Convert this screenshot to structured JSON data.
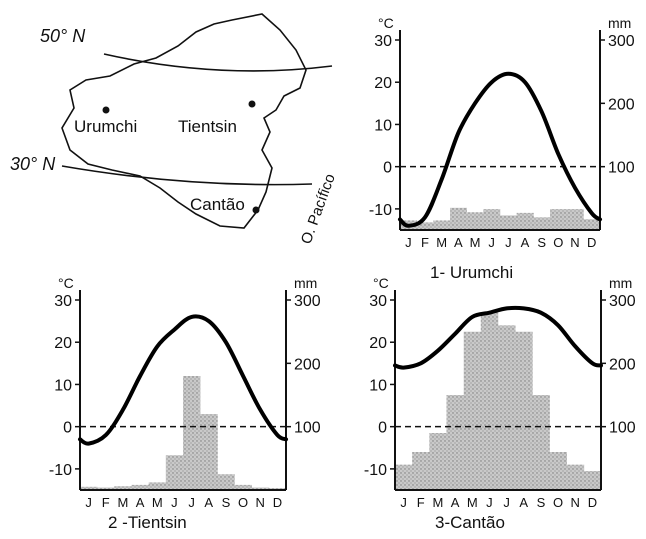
{
  "map": {
    "lat_labels": [
      "50° N",
      "30° N"
    ],
    "cities": [
      {
        "name": "Urumchi"
      },
      {
        "name": "Tientsin"
      },
      {
        "name": "Cantão"
      }
    ],
    "ocean_label": "O. Pacífico"
  },
  "chart_data": [
    {
      "type": "bar",
      "title": "1- Urumchi",
      "categories": [
        "J",
        "F",
        "M",
        "A",
        "M",
        "J",
        "J",
        "A",
        "S",
        "O",
        "N",
        "D"
      ],
      "left_unit": "°C",
      "right_unit": "mm",
      "temp_range": [
        -15,
        30
      ],
      "temp_ticks": [
        30,
        20,
        10,
        0,
        -10
      ],
      "precip_range": [
        0,
        300
      ],
      "precip_ticks": [
        300,
        200,
        100
      ],
      "series": [
        {
          "type": "line",
          "axis": "left",
          "values": [
            -14,
            -12,
            -3,
            8,
            15,
            20,
            22,
            20,
            13,
            3,
            -5,
            -11
          ]
        },
        {
          "type": "bar",
          "axis": "right",
          "values": [
            15,
            12,
            15,
            35,
            28,
            33,
            23,
            27,
            20,
            33,
            33,
            17
          ]
        }
      ]
    },
    {
      "type": "bar",
      "title": "2 -Tientsin",
      "categories": [
        "J",
        "F",
        "M",
        "A",
        "M",
        "J",
        "J",
        "A",
        "S",
        "O",
        "N",
        "D"
      ],
      "left_unit": "°C",
      "right_unit": "mm",
      "temp_range": [
        -15,
        30
      ],
      "temp_ticks": [
        30,
        20,
        10,
        0,
        -10
      ],
      "precip_range": [
        0,
        300
      ],
      "precip_ticks": [
        300,
        200,
        100
      ],
      "series": [
        {
          "type": "line",
          "axis": "left",
          "values": [
            -4,
            -2,
            4,
            12,
            19,
            23,
            26,
            25,
            20,
            12,
            4,
            -2
          ]
        },
        {
          "type": "bar",
          "axis": "right",
          "values": [
            5,
            4,
            6,
            8,
            12,
            55,
            180,
            120,
            25,
            8,
            4,
            3
          ]
        }
      ]
    },
    {
      "type": "bar",
      "title": "3-Cantão",
      "categories": [
        "J",
        "F",
        "M",
        "A",
        "M",
        "J",
        "J",
        "A",
        "S",
        "O",
        "N",
        "D"
      ],
      "left_unit": "°C",
      "right_unit": "mm",
      "temp_range": [
        -15,
        30
      ],
      "temp_ticks": [
        30,
        20,
        10,
        0,
        -10
      ],
      "precip_range": [
        0,
        300
      ],
      "precip_ticks": [
        300,
        200,
        100
      ],
      "series": [
        {
          "type": "line",
          "axis": "left",
          "values": [
            14,
            15,
            18,
            22,
            26,
            27,
            28,
            28,
            27,
            24,
            19,
            15
          ]
        },
        {
          "type": "bar",
          "axis": "right",
          "values": [
            40,
            60,
            90,
            150,
            250,
            280,
            260,
            250,
            150,
            60,
            40,
            30
          ]
        }
      ]
    }
  ]
}
